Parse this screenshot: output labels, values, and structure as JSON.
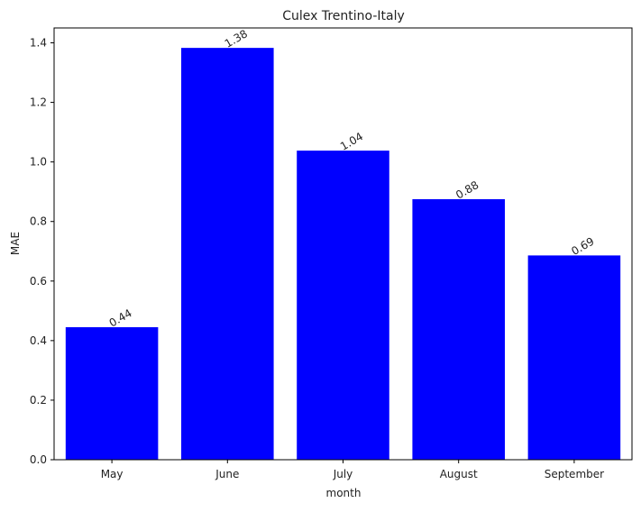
{
  "chart_data": {
    "type": "bar",
    "title": "Culex Trentino-Italy",
    "xlabel": "month",
    "ylabel": "MAE",
    "categories": [
      "May",
      "June",
      "July",
      "August",
      "September"
    ],
    "values": [
      0.445,
      1.383,
      1.038,
      0.875,
      0.686
    ],
    "data_labels": [
      "0.44",
      "1.38",
      "1.04",
      "0.88",
      "0.69"
    ],
    "yticks": [
      "0.0",
      "0.2",
      "0.4",
      "0.6",
      "0.8",
      "1.0",
      "1.2",
      "1.4"
    ],
    "ylim": [
      0,
      1.45
    ],
    "bar_color": "#0000ff",
    "grid": false
  }
}
